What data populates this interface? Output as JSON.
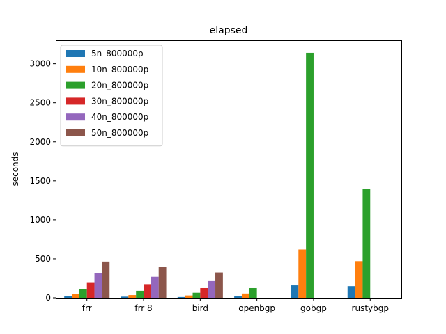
{
  "chart_data": {
    "type": "bar",
    "title": "elapsed",
    "xlabel": "",
    "ylabel": "seconds",
    "categories": [
      "frr",
      "frr 8",
      "bird",
      "openbgp",
      "gobgp",
      "rustybgp"
    ],
    "ylim": [
      0,
      3300
    ],
    "yticks": [
      0,
      500,
      1000,
      1500,
      2000,
      2500,
      3000
    ],
    "legend_position": "top-left",
    "grid": false,
    "series": [
      {
        "name": "5n_800000p",
        "color": "#1f77b4",
        "values": [
          25,
          15,
          10,
          25,
          160,
          150
        ]
      },
      {
        "name": "10n_800000p",
        "color": "#ff7f0e",
        "values": [
          45,
          35,
          30,
          55,
          620,
          470
        ]
      },
      {
        "name": "20n_800000p",
        "color": "#2ca02c",
        "values": [
          110,
          90,
          65,
          125,
          3140,
          1400
        ]
      },
      {
        "name": "30n_800000p",
        "color": "#d62728",
        "values": [
          200,
          175,
          125,
          0,
          0,
          0
        ]
      },
      {
        "name": "40n_800000p",
        "color": "#9467bd",
        "values": [
          315,
          270,
          215,
          0,
          0,
          0
        ]
      },
      {
        "name": "50n_800000p",
        "color": "#8c564b",
        "values": [
          465,
          395,
          325,
          0,
          0,
          0
        ]
      }
    ]
  }
}
